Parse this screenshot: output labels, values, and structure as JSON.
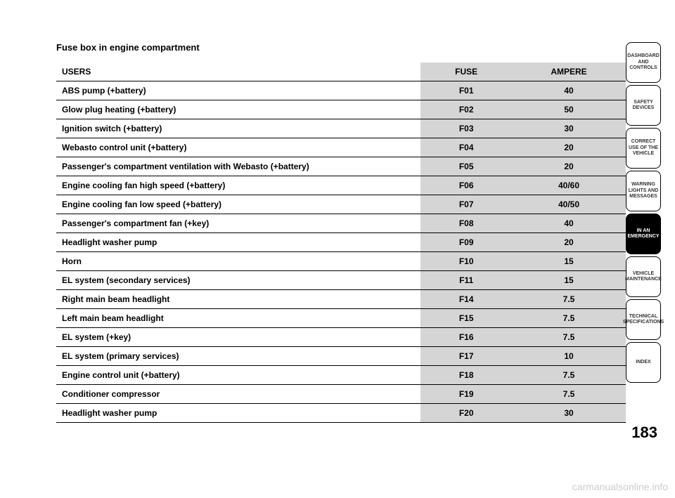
{
  "title": "Fuse box in engine compartment",
  "columns": {
    "users": "USERS",
    "fuse": "FUSE",
    "ampere": "AMPERE"
  },
  "rows": [
    {
      "users": "ABS pump (+battery)",
      "fuse": "F01",
      "ampere": "40"
    },
    {
      "users": "Glow plug heating (+battery)",
      "fuse": "F02",
      "ampere": "50"
    },
    {
      "users": "Ignition switch (+battery)",
      "fuse": "F03",
      "ampere": "30"
    },
    {
      "users": "Webasto control unit (+battery)",
      "fuse": "F04",
      "ampere": "20"
    },
    {
      "users": "Passenger's compartment ventilation with Webasto (+battery)",
      "fuse": "F05",
      "ampere": "20"
    },
    {
      "users": "Engine cooling fan high speed (+battery)",
      "fuse": "F06",
      "ampere": "40/60"
    },
    {
      "users": "Engine cooling fan low speed (+battery)",
      "fuse": "F07",
      "ampere": "40/50"
    },
    {
      "users": "Passenger's compartment fan (+key)",
      "fuse": "F08",
      "ampere": "40"
    },
    {
      "users": "Headlight washer pump",
      "fuse": "F09",
      "ampere": "20"
    },
    {
      "users": "Horn",
      "fuse": "F10",
      "ampere": "15"
    },
    {
      "users": "EL system (secondary services)",
      "fuse": "F11",
      "ampere": "15"
    },
    {
      "users": "Right main beam headlight",
      "fuse": "F14",
      "ampere": "7.5"
    },
    {
      "users": "Left main beam headlight",
      "fuse": "F15",
      "ampere": "7.5"
    },
    {
      "users": "EL system (+key)",
      "fuse": "F16",
      "ampere": "7.5"
    },
    {
      "users": "EL system (primary services)",
      "fuse": "F17",
      "ampere": "10"
    },
    {
      "users": "Engine control unit (+battery)",
      "fuse": "F18",
      "ampere": "7.5"
    },
    {
      "users": "Conditioner compressor",
      "fuse": "F19",
      "ampere": "7.5"
    },
    {
      "users": "Headlight washer pump",
      "fuse": "F20",
      "ampere": "30"
    }
  ],
  "side_tabs": [
    {
      "label": "DASHBOARD AND CONTROLS",
      "active": false
    },
    {
      "label": "SAFETY DEVICES",
      "active": false
    },
    {
      "label": "CORRECT USE OF THE VEHICLE",
      "active": false
    },
    {
      "label": "WARNING LIGHTS AND MESSAGES",
      "active": false
    },
    {
      "label": "IN AN EMERGENCY",
      "active": true
    },
    {
      "label": "VEHICLE MAINTENANCE",
      "active": false
    },
    {
      "label": "TECHNICAL SPECIFICATIONS",
      "active": false
    },
    {
      "label": "INDEX",
      "active": false
    }
  ],
  "page_number": "183",
  "watermark": "carmanualsonline.info",
  "styling": {
    "background_color": "#ffffff",
    "header_row_bg": "#d5d5d5",
    "cell_border_color": "#000000",
    "title_fontsize": 13,
    "header_fontsize": 12,
    "cell_fontsize": 12,
    "tab_fontsize": 7,
    "active_tab_bg": "#000000",
    "active_tab_color": "#ffffff",
    "inactive_tab_bg": "#ffffff",
    "page_number_fontsize": 22,
    "watermark_color": "#cccccc"
  }
}
